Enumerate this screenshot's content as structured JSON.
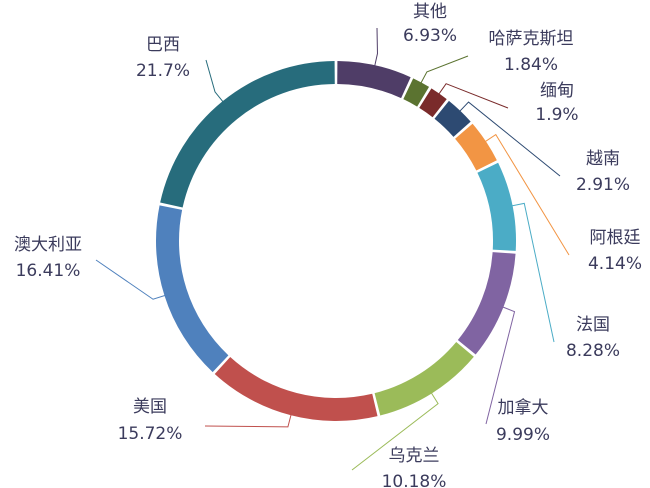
{
  "chart_data": {
    "type": "pie",
    "variant": "donut",
    "title": "",
    "legend": "none",
    "slices": [
      {
        "name": "其他",
        "value": 6.93,
        "label": "6.93%",
        "color": "#4f3d67"
      },
      {
        "name": "哈萨克斯坦",
        "value": 1.84,
        "label": "1.84%",
        "color": "#5b7330"
      },
      {
        "name": "缅甸",
        "value": 1.9,
        "label": "1.9%",
        "color": "#7a2b2b"
      },
      {
        "name": "越南",
        "value": 2.91,
        "label": "2.91%",
        "color": "#2d4a72"
      },
      {
        "name": "阿根廷",
        "value": 4.14,
        "label": "4.14%",
        "color": "#f29544"
      },
      {
        "name": "法国",
        "value": 8.28,
        "label": "8.28%",
        "color": "#4bacc6"
      },
      {
        "name": "加拿大",
        "value": 9.99,
        "label": "9.99%",
        "color": "#8064a2"
      },
      {
        "name": "乌克兰",
        "value": 10.18,
        "label": "10.18%",
        "color": "#9bbb59"
      },
      {
        "name": "美国",
        "value": 15.72,
        "label": "15.72%",
        "color": "#c0504d"
      },
      {
        "name": "澳大利亚",
        "value": 16.41,
        "label": "16.41%",
        "color": "#4f81bd"
      },
      {
        "name": "巴西",
        "value": 21.7,
        "label": "21.7%",
        "color": "#276c7c"
      }
    ]
  }
}
